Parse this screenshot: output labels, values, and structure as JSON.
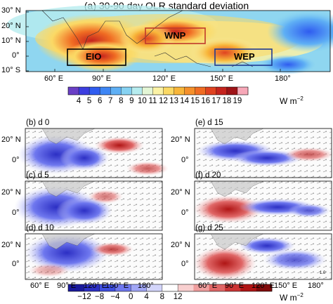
{
  "top_panel": {
    "title": "(a) 30-90 day OLR standard deviation",
    "lat_labels": [
      "30° N",
      "20° N",
      "10° N",
      "0°",
      "10° S"
    ],
    "lon_labels": [
      "60° E",
      "90° E",
      "120° E",
      "150° E",
      "180°"
    ],
    "boxes": [
      {
        "label": "EIO",
        "color": "#000000"
      },
      {
        "label": "WNP",
        "color": "#c0392b"
      },
      {
        "label": "WEP",
        "color": "#1f3a93"
      }
    ],
    "colorbar": {
      "ticks": [
        "4",
        "5",
        "6",
        "7",
        "8",
        "9",
        "10",
        "11",
        "12",
        "13",
        "14",
        "15",
        "16",
        "17",
        "18",
        "19"
      ],
      "unit": "W m",
      "unit_exp": "−2",
      "colors": [
        "#6a3fc6",
        "#3c3ee0",
        "#2f5cf0",
        "#3e86f5",
        "#5fb0f5",
        "#86d2f2",
        "#b6ecef",
        "#e4f6d6",
        "#fbf2a5",
        "#fbd965",
        "#f8b63a",
        "#f5902b",
        "#f06c23",
        "#e04321",
        "#c5241e",
        "#9e1317",
        "#f7a8b8"
      ]
    }
  },
  "small_panels": [
    {
      "label": "(b) d 0"
    },
    {
      "label": "(e) d 15"
    },
    {
      "label": "(c) d 5"
    },
    {
      "label": "(f) d 20"
    },
    {
      "label": "(d) d 10"
    },
    {
      "label": "(g) d 25"
    }
  ],
  "small_axes": {
    "lat_labels": [
      "20° N",
      "0°"
    ],
    "lon_labels_left": [
      "60° E",
      "90° E",
      "120° E",
      "150° E",
      "180°"
    ],
    "lon_labels_right": [
      "60° E",
      "90° E",
      "120° E",
      "150° E",
      "180°"
    ]
  },
  "bottom_colorbar": {
    "ticks": [
      "−12",
      "−8",
      "−4",
      "0",
      "4",
      "8",
      "12"
    ],
    "unit": "W m",
    "unit_exp": "−2",
    "colors": [
      "#1a1a9c",
      "#2c2fc4",
      "#3f4fe0",
      "#6f78ef",
      "#a1a6f5",
      "#d3d5fa",
      "#ffffff",
      "#f8cfcf",
      "#ef9e9e",
      "#e06767",
      "#cc3535",
      "#b01515",
      "#800a0a"
    ]
  },
  "reference_vector": "1.0"
}
